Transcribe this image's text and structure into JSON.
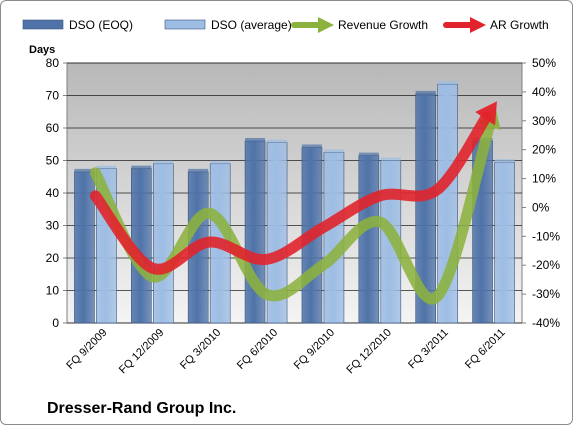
{
  "company": "Dresser-Rand Group Inc.",
  "chart_data": {
    "type": "bar",
    "categories": [
      "FQ 9/2009",
      "FQ 12/2009",
      "FQ 3/2010",
      "FQ 6/2010",
      "FQ 9/2010",
      "FQ 12/2010",
      "FQ 3/2011",
      "FQ 6/2011"
    ],
    "y_left_label": "Days",
    "y_left_lim": [
      0,
      80
    ],
    "y_left_ticks": [
      "0",
      "10",
      "20",
      "30",
      "40",
      "50",
      "60",
      "70",
      "80"
    ],
    "y_right_lim": [
      -40,
      50
    ],
    "y_right_ticks": [
      "-40%",
      "-30%",
      "-20%",
      "-10%",
      "0%",
      "10%",
      "20%",
      "30%",
      "40%",
      "50%"
    ],
    "legend_position": "top",
    "grid": true,
    "series": [
      {
        "name": "DSO (EOQ)",
        "kind": "bar",
        "axis": "left",
        "color": "#4f73a8",
        "values": [
          46.5,
          47.5,
          46.5,
          56,
          54,
          51.5,
          70.5,
          56
        ]
      },
      {
        "name": "DSO (average)",
        "kind": "bar",
        "axis": "left",
        "color": "#9dbde4",
        "values": [
          47.5,
          49,
          49,
          55.5,
          52.5,
          50,
          73.5,
          49.5
        ]
      },
      {
        "name": "Revenue Growth",
        "kind": "line",
        "axis": "right",
        "color": "#8cb23e",
        "values": [
          12,
          -24,
          -2,
          -30,
          -20,
          -5,
          -31,
          33
        ]
      },
      {
        "name": "AR Growth",
        "kind": "line",
        "axis": "right",
        "color": "#e1232b",
        "values": [
          4,
          -21,
          -12,
          -18,
          -7,
          4,
          6,
          35
        ]
      }
    ]
  }
}
